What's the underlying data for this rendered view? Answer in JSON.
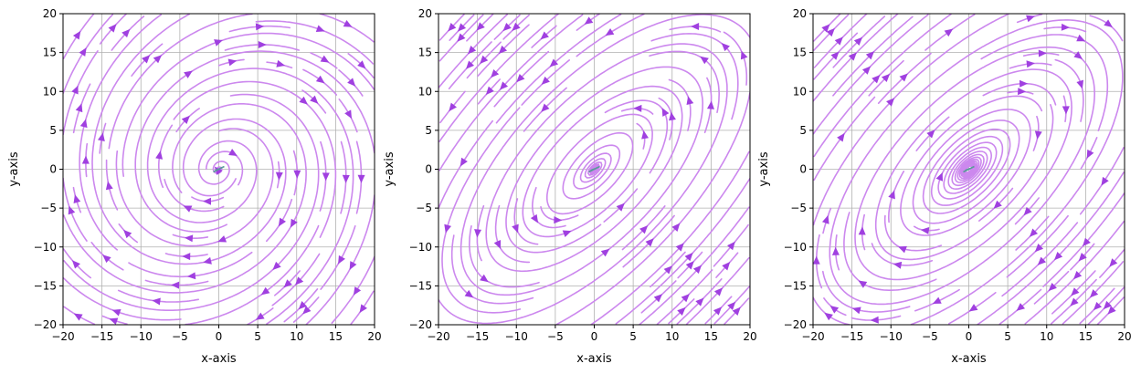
{
  "chart_data": [
    {
      "type": "streamplot",
      "xlabel": "x-axis",
      "ylabel": "y-axis",
      "xlim": [
        -20,
        20
      ],
      "ylim": [
        -20,
        20
      ],
      "xticks": [
        -20,
        -15,
        -10,
        -5,
        0,
        5,
        10,
        15,
        20
      ],
      "yticks": [
        -20,
        -15,
        -10,
        -5,
        0,
        5,
        10,
        15,
        20
      ],
      "xtick_labels": [
        "−20",
        "−15",
        "−10",
        "−5",
        "0",
        "5",
        "10",
        "15",
        "20"
      ],
      "ytick_labels": [
        "−20",
        "−15",
        "−10",
        "−5",
        "0",
        "5",
        "10",
        "15",
        "20"
      ],
      "grid": true,
      "field": {
        "a": 0.05,
        "b": 1.0,
        "c": -1.0,
        "d": 0.35
      },
      "stream_color": "#cc88ee",
      "arrow_color": "#a040e0",
      "center_color": "#5a9a9a"
    },
    {
      "type": "streamplot",
      "xlabel": "x-axis",
      "ylabel": "y-axis",
      "xlim": [
        -20,
        20
      ],
      "ylim": [
        -20,
        20
      ],
      "xticks": [
        -20,
        -15,
        -10,
        -5,
        0,
        5,
        10,
        15,
        20
      ],
      "yticks": [
        -20,
        -15,
        -10,
        -5,
        0,
        5,
        10,
        15,
        20
      ],
      "xtick_labels": [
        "−20",
        "−15",
        "−10",
        "−5",
        "0",
        "5",
        "10",
        "15",
        "20"
      ],
      "ytick_labels": [
        "−20",
        "−15",
        "−10",
        "−5",
        "0",
        "5",
        "10",
        "15",
        "20"
      ],
      "grid": true,
      "field": {
        "a": 0.6,
        "b": -1.0,
        "c": 1.0,
        "d": -0.7
      },
      "stream_color": "#cc88ee",
      "arrow_color": "#a040e0",
      "center_color": "#5a9a9a"
    },
    {
      "type": "streamplot",
      "xlabel": "x-axis",
      "ylabel": "y-axis",
      "xlim": [
        -20,
        20
      ],
      "ylim": [
        -20,
        20
      ],
      "xticks": [
        -20,
        -15,
        -10,
        -5,
        0,
        5,
        10,
        15,
        20
      ],
      "yticks": [
        -20,
        -15,
        -10,
        -5,
        0,
        5,
        10,
        15,
        20
      ],
      "xtick_labels": [
        "−20",
        "−15",
        "−10",
        "−5",
        "0",
        "5",
        "10",
        "15",
        "20"
      ],
      "ytick_labels": [
        "−20",
        "−15",
        "−10",
        "−5",
        "0",
        "5",
        "10",
        "15",
        "20"
      ],
      "grid": true,
      "field": {
        "a": -0.6,
        "b": 1.0,
        "c": -1.0,
        "d": 0.65
      },
      "stream_color": "#cc88ee",
      "arrow_color": "#a040e0",
      "center_color": "#5a9a9a"
    }
  ]
}
